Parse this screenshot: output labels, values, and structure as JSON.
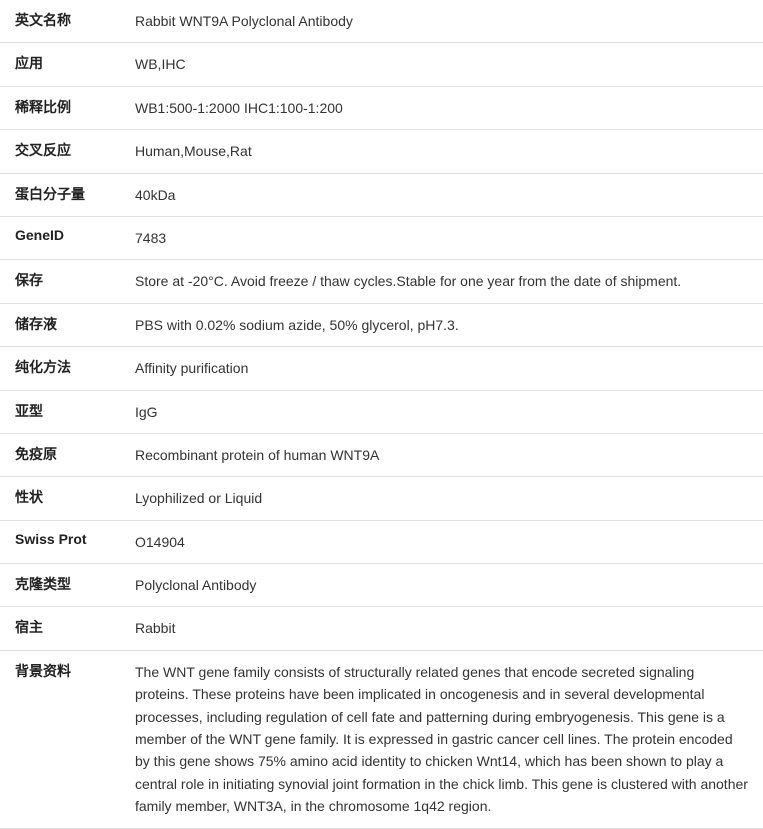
{
  "rows": [
    {
      "label": "英文名称",
      "value": "Rabbit WNT9A Polyclonal Antibody"
    },
    {
      "label": "应用",
      "value": "WB,IHC"
    },
    {
      "label": "稀释比例",
      "value": "WB1:500-1:2000 IHC1:100-1:200"
    },
    {
      "label": "交叉反应",
      "value": "Human,Mouse,Rat"
    },
    {
      "label": "蛋白分子量",
      "value": "40kDa"
    },
    {
      "label": "GeneID",
      "value": "7483"
    },
    {
      "label": "保存",
      "value": "Store at -20°C. Avoid freeze / thaw cycles.Stable for one year from the date of shipment."
    },
    {
      "label": "储存液",
      "value": "PBS with 0.02% sodium azide, 50% glycerol, pH7.3."
    },
    {
      "label": "纯化方法",
      "value": "Affinity purification"
    },
    {
      "label": "亚型",
      "value": "IgG"
    },
    {
      "label": "免疫原",
      "value": "Recombinant protein of human WNT9A"
    },
    {
      "label": "性状",
      "value": "Lyophilized or Liquid"
    },
    {
      "label": "Swiss Prot",
      "value": "O14904"
    },
    {
      "label": "克隆类型",
      "value": "Polyclonal Antibody"
    },
    {
      "label": "宿主",
      "value": "Rabbit"
    },
    {
      "label": "背景资料",
      "value": "The WNT gene family consists of structurally related genes that encode secreted signaling proteins. These proteins have been implicated in oncogenesis and in several developmental processes, including regulation of cell fate and patterning during embryogenesis. This gene is a member of the WNT gene family. It is expressed in gastric cancer cell lines. The protein encoded by this gene shows 75% amino acid identity to chicken Wnt14, which has been shown to play a central role in initiating synovial joint formation in the chick limb. This gene is clustered with another family member, WNT3A, in the chromosome 1q42 region."
    }
  ]
}
